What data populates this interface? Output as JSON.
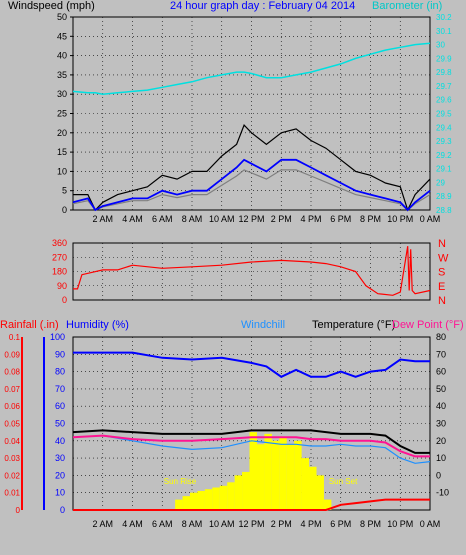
{
  "header": {
    "wind_title": "Windspeed (mph)",
    "main_title": "24 hour graph day : February 04 2014",
    "baro_title": "Barometer (in)"
  },
  "lower_header": {
    "rain": "Rainfall (.in)",
    "humidity": "Humidity (%)",
    "windchill": "Windchill",
    "temperature": "Temperature (°F)",
    "dewpoint": "Dew Point (°F)"
  },
  "colors": {
    "background": "#c0c0c0",
    "wind": "#0000ff",
    "gust": "#000000",
    "wind_gray": "#808080",
    "barometer": "#00e0e0",
    "direction": "#ff0000",
    "humidity": "#0000ff",
    "temperature": "#000000",
    "dewpoint": "#ff1493",
    "windchill": "#1e90ff",
    "solar": "#ffff00",
    "rain": "#ff0000"
  },
  "chart_data": [
    {
      "type": "line",
      "name": "wind",
      "x_ticks": [
        "2 AM",
        "4 AM",
        "6 AM",
        "8 AM",
        "10 AM",
        "12 PM",
        "2 PM",
        "4 PM",
        "6 PM",
        "8 PM",
        "10 PM",
        "0 AM"
      ],
      "ylabel_left": "Windspeed (mph)",
      "ylim_left": [
        0,
        50
      ],
      "y_ticks_left": [
        "0",
        "5",
        "10",
        "15",
        "20",
        "25",
        "30",
        "35",
        "40",
        "45",
        "50"
      ],
      "ylabel_right": "Barometer (in)",
      "ylim_right": [
        28.8,
        30.2
      ],
      "y_ticks_right": [
        "28.8",
        "28.9",
        "29",
        "29.1",
        "29.2",
        "29.3",
        "29.4",
        "29.5",
        "29.6",
        "29.7",
        "29.8",
        "29.9",
        "30",
        "30.1",
        "30.2"
      ],
      "x_hours": [
        0,
        1,
        1.5,
        2,
        3,
        4,
        5,
        6,
        7,
        8,
        9,
        10,
        11,
        11.5,
        12,
        13,
        14,
        15,
        16,
        17,
        18,
        19,
        20,
        21,
        22,
        22.5,
        23,
        24
      ],
      "gust": [
        4,
        4,
        0,
        2,
        4,
        5,
        6,
        9,
        8,
        10,
        10,
        14,
        17,
        22,
        20,
        17,
        20,
        21,
        18,
        16,
        13,
        10,
        9,
        7,
        6,
        0,
        4,
        8
      ],
      "wind": [
        2,
        3,
        0,
        1,
        2,
        3,
        3,
        5,
        4,
        5,
        5,
        8,
        11,
        13,
        12,
        10,
        13,
        13,
        11,
        9,
        7,
        5,
        4,
        3,
        2,
        0,
        2,
        5
      ],
      "barometer": [
        29.66,
        29.65,
        29.65,
        29.64,
        29.65,
        29.66,
        29.67,
        29.69,
        29.71,
        29.73,
        29.76,
        29.78,
        29.8,
        29.8,
        29.79,
        29.76,
        29.76,
        29.78,
        29.8,
        29.83,
        29.86,
        29.9,
        29.93,
        29.96,
        29.98,
        29.99,
        30.0,
        30.01
      ]
    },
    {
      "type": "line",
      "name": "wind direction",
      "x_hours": [
        0,
        0.3,
        0.6,
        2,
        3,
        4,
        6,
        8,
        10,
        12,
        14,
        16,
        17,
        18,
        19,
        19.7,
        20.5,
        21.5,
        22,
        22.5,
        22.6,
        22.7,
        22.8,
        23,
        24
      ],
      "values": [
        70,
        70,
        160,
        190,
        190,
        220,
        200,
        210,
        220,
        240,
        250,
        240,
        230,
        210,
        180,
        90,
        40,
        30,
        50,
        340,
        60,
        320,
        60,
        40,
        60
      ],
      "ylim": [
        0,
        360
      ],
      "y_ticks": [
        "0",
        "90",
        "180",
        "270",
        "360"
      ],
      "y_ticks_right": [
        "N",
        "W",
        "S",
        "E",
        "N"
      ]
    },
    {
      "type": "line",
      "name": "temperature / humidity",
      "x_ticks": [
        "2 AM",
        "4 AM",
        "6 AM",
        "8 AM",
        "10 AM",
        "12 PM",
        "2 PM",
        "4 PM",
        "6 PM",
        "8 PM",
        "10 PM",
        "0 AM"
      ],
      "rain_ylim": [
        0,
        0.1
      ],
      "rain_ticks": [
        "0",
        "0.01",
        "0.02",
        "0.03",
        "0.04",
        "0.05",
        "0.06",
        "0.07",
        "0.08",
        "0.09",
        "0.1"
      ],
      "humidity_ylim": [
        0,
        100
      ],
      "humidity_ticks": [
        "0",
        "10",
        "20",
        "30",
        "40",
        "50",
        "60",
        "70",
        "80",
        "90",
        "100"
      ],
      "temp_ylim": [
        -20,
        80
      ],
      "temp_ticks": [
        "-10",
        "0",
        "10",
        "20",
        "30",
        "40",
        "50",
        "60",
        "70",
        "80"
      ],
      "x_hours": [
        0,
        2,
        4,
        6,
        8,
        10,
        12,
        13,
        14,
        15,
        16,
        17,
        18,
        19,
        20,
        21,
        22,
        23,
        24
      ],
      "temperature": [
        25,
        26,
        25,
        24,
        24,
        24,
        26,
        26,
        26,
        26,
        26,
        25,
        24,
        24,
        24,
        23,
        17,
        13,
        13
      ],
      "dewpoint": [
        22,
        23,
        21,
        20,
        20,
        21,
        22,
        22,
        22,
        22,
        21,
        21,
        20,
        20,
        20,
        19,
        14,
        11,
        11
      ],
      "windchill": [
        22,
        23,
        20,
        17,
        15,
        16,
        20,
        19,
        18,
        18,
        17,
        17,
        18,
        17,
        17,
        16,
        10,
        7,
        8
      ],
      "humidity": [
        91,
        91,
        91,
        88,
        87,
        88,
        85,
        83,
        77,
        81,
        77,
        77,
        80,
        77,
        80,
        81,
        87,
        86,
        86
      ],
      "solar_hours": [
        7,
        7.5,
        8,
        8.5,
        9,
        9.5,
        10,
        10.5,
        11,
        11.5,
        12,
        12.5,
        13,
        13.5,
        14,
        14.5,
        15,
        15.5,
        16,
        16.5,
        17
      ],
      "solar": [
        6,
        8,
        10,
        11,
        12,
        13,
        14,
        16,
        20,
        22,
        45,
        38,
        44,
        40,
        42,
        38,
        40,
        30,
        25,
        20,
        6
      ],
      "rain": [
        0,
        0,
        0,
        0,
        0,
        0,
        0,
        0,
        0,
        0,
        0,
        0,
        0.003,
        0.004,
        0.005,
        0.006,
        0.006,
        0.006,
        0.006
      ],
      "annotations": [
        "Sun Rise",
        "Sun Set"
      ]
    }
  ]
}
